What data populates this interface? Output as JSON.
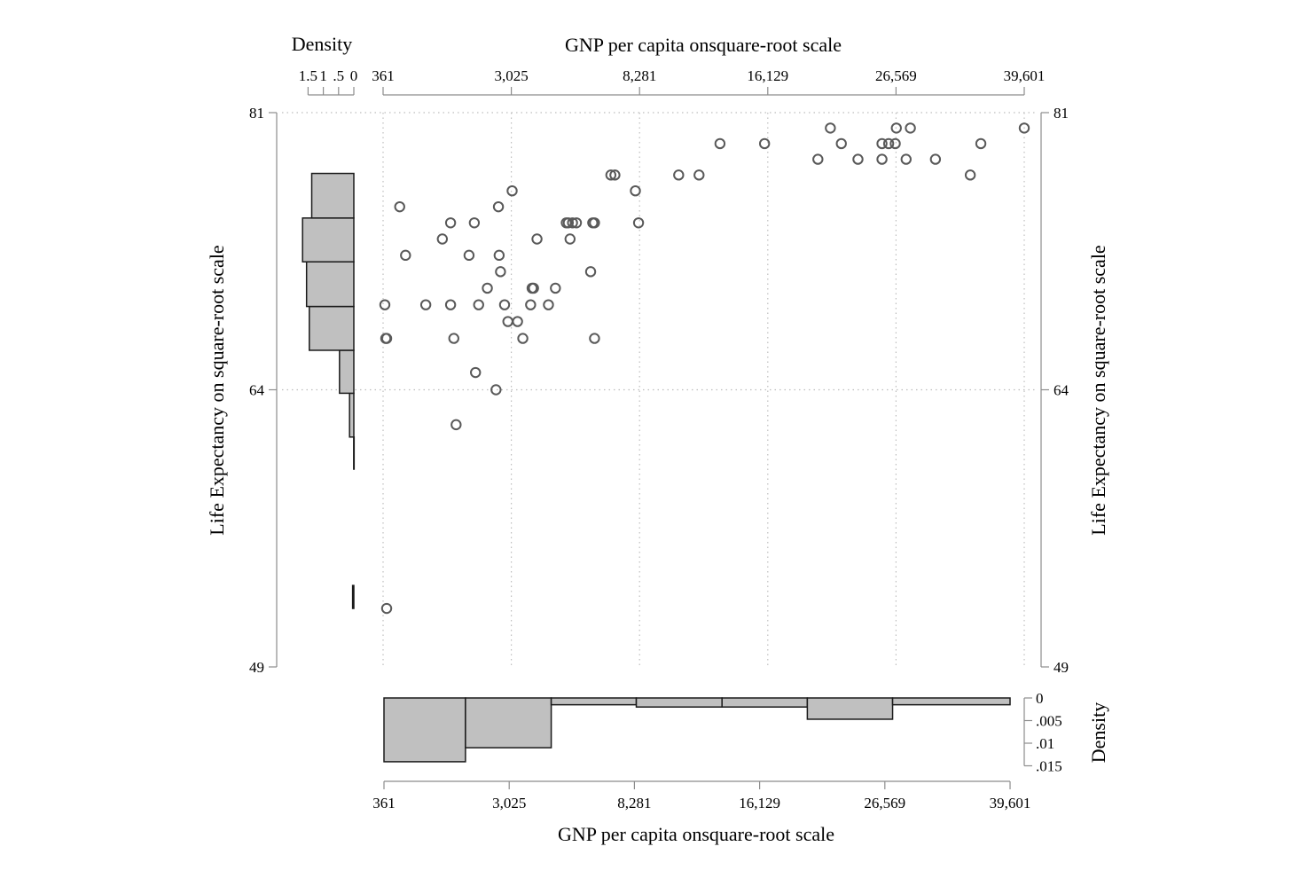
{
  "chart_data": {
    "type": "scatter",
    "title": "",
    "scatter": {
      "xlabel": "GNP per capita onsquare-root scale",
      "ylabel": "Life Expectancy on square-root scale",
      "x_scale": "sqrt",
      "y_scale": "sqrt",
      "xlim": [
        361,
        39601
      ],
      "ylim": [
        49,
        81
      ],
      "x_ticks": [
        361,
        3025,
        8281,
        16129,
        26569,
        39601
      ],
      "x_tick_labels": [
        "361",
        "3,025",
        "8,281",
        "16,129",
        "26,569",
        "39,601"
      ],
      "y_ticks": [
        49,
        64,
        81
      ],
      "y_tick_labels": [
        "49",
        "64",
        "81"
      ],
      "grid": true,
      "points": [
        {
          "x": 400,
          "y": 52
        },
        {
          "x": 390,
          "y": 67
        },
        {
          "x": 400,
          "y": 67
        },
        {
          "x": 380,
          "y": 69
        },
        {
          "x": 560,
          "y": 75
        },
        {
          "x": 640,
          "y": 72
        },
        {
          "x": 960,
          "y": 69
        },
        {
          "x": 1270,
          "y": 73
        },
        {
          "x": 1440,
          "y": 74
        },
        {
          "x": 1510,
          "y": 67
        },
        {
          "x": 1440,
          "y": 69
        },
        {
          "x": 1560,
          "y": 62
        },
        {
          "x": 1860,
          "y": 72
        },
        {
          "x": 1990,
          "y": 74
        },
        {
          "x": 2100,
          "y": 69
        },
        {
          "x": 2020,
          "y": 65
        },
        {
          "x": 2330,
          "y": 70
        },
        {
          "x": 2570,
          "y": 64
        },
        {
          "x": 2640,
          "y": 75
        },
        {
          "x": 2660,
          "y": 72
        },
        {
          "x": 2700,
          "y": 71
        },
        {
          "x": 2820,
          "y": 69
        },
        {
          "x": 2920,
          "y": 68
        },
        {
          "x": 3220,
          "y": 68
        },
        {
          "x": 3390,
          "y": 67
        },
        {
          "x": 3650,
          "y": 69
        },
        {
          "x": 3700,
          "y": 70
        },
        {
          "x": 3750,
          "y": 70
        },
        {
          "x": 3870,
          "y": 73
        },
        {
          "x": 3050,
          "y": 76
        },
        {
          "x": 4280,
          "y": 69
        },
        {
          "x": 4540,
          "y": 70
        },
        {
          "x": 4960,
          "y": 74
        },
        {
          "x": 5040,
          "y": 74
        },
        {
          "x": 5210,
          "y": 74
        },
        {
          "x": 5370,
          "y": 74
        },
        {
          "x": 5110,
          "y": 73
        },
        {
          "x": 5970,
          "y": 71
        },
        {
          "x": 6060,
          "y": 74
        },
        {
          "x": 6140,
          "y": 74
        },
        {
          "x": 6140,
          "y": 67
        },
        {
          "x": 6880,
          "y": 77
        },
        {
          "x": 7070,
          "y": 77
        },
        {
          "x": 8070,
          "y": 76
        },
        {
          "x": 8230,
          "y": 74
        },
        {
          "x": 10400,
          "y": 77
        },
        {
          "x": 11600,
          "y": 77
        },
        {
          "x": 12900,
          "y": 79
        },
        {
          "x": 15900,
          "y": 79
        },
        {
          "x": 19900,
          "y": 78
        },
        {
          "x": 20900,
          "y": 80
        },
        {
          "x": 21800,
          "y": 79
        },
        {
          "x": 23200,
          "y": 78
        },
        {
          "x": 25300,
          "y": 78
        },
        {
          "x": 25300,
          "y": 79
        },
        {
          "x": 25900,
          "y": 79
        },
        {
          "x": 26500,
          "y": 79
        },
        {
          "x": 26600,
          "y": 80
        },
        {
          "x": 27500,
          "y": 78
        },
        {
          "x": 27900,
          "y": 80
        },
        {
          "x": 30300,
          "y": 78
        },
        {
          "x": 33800,
          "y": 77
        },
        {
          "x": 34900,
          "y": 79
        },
        {
          "x": 39600,
          "y": 80
        }
      ]
    },
    "y_histogram": {
      "label": "Density",
      "orientation": "horizontal",
      "density_ticks": [
        1.5,
        1,
        0.5,
        0
      ],
      "density_tick_labels": [
        "1.5",
        "1",
        ".5",
        "0"
      ],
      "bins": [
        {
          "low": 52.0,
          "high": 53.2,
          "density": 0.04
        },
        {
          "low": 59.5,
          "high": 61.3,
          "density": 0.005
        },
        {
          "low": 61.3,
          "high": 63.8,
          "density": 0.14
        },
        {
          "low": 63.8,
          "high": 66.3,
          "density": 0.47
        },
        {
          "low": 66.3,
          "high": 68.9,
          "density": 1.46
        },
        {
          "low": 68.9,
          "high": 71.6,
          "density": 1.55
        },
        {
          "low": 71.6,
          "high": 74.3,
          "density": 1.68
        },
        {
          "low": 74.3,
          "high": 77.1,
          "density": 1.38
        }
      ]
    },
    "x_histogram": {
      "label": "Density",
      "orientation": "vertical",
      "density_ticks": [
        0,
        0.005,
        0.01,
        0.015
      ],
      "density_tick_labels": [
        "0",
        ".005",
        ".01",
        ".015"
      ],
      "tick_labels": [
        "361",
        "3,025",
        "8,281",
        "16,129",
        "26,569",
        "39,601"
      ],
      "bins": [
        {
          "low": 361,
          "high": 1800,
          "density": 0.0141
        },
        {
          "low": 1800,
          "high": 4500,
          "density": 0.011
        },
        {
          "low": 4500,
          "high": 8380,
          "density": 0.0015
        },
        {
          "low": 8380,
          "high": 13500,
          "density": 0.002
        },
        {
          "low": 13500,
          "high": 19800,
          "density": 0.002
        },
        {
          "low": 19800,
          "high": 27300,
          "density": 0.0047
        },
        {
          "low": 27300,
          "high": 39600,
          "density": 0.0015
        }
      ]
    }
  }
}
